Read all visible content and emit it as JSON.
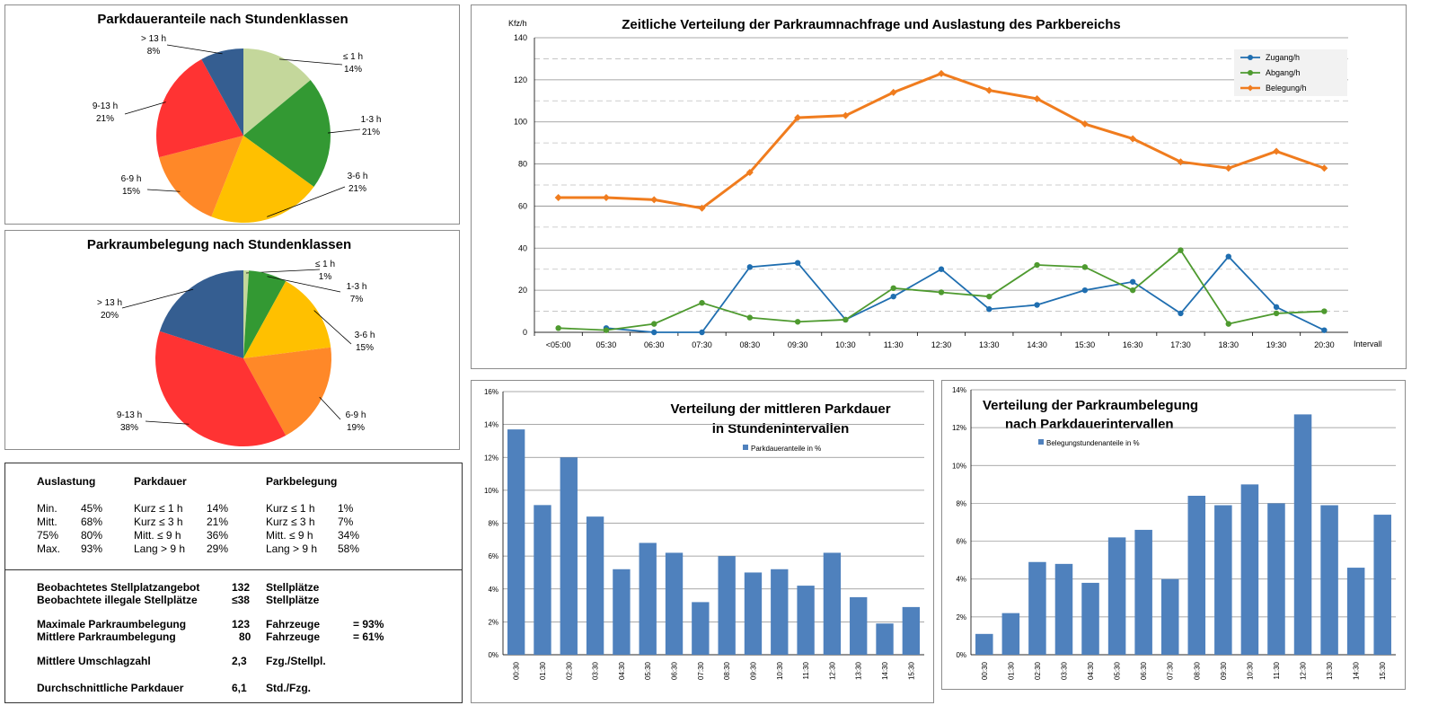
{
  "pie1": {
    "title": "Parkdaueranteile  nach Stundenklassen",
    "slices": [
      {
        "label": "≤ 1 h",
        "pct": "14%",
        "value": 14,
        "color": "#c4d79b"
      },
      {
        "label": "1-3 h",
        "pct": "21%",
        "value": 21,
        "color": "#339933"
      },
      {
        "label": "3-6 h",
        "pct": "21%",
        "value": 21,
        "color": "#ffc000"
      },
      {
        "label": "6-9 h",
        "pct": "15%",
        "value": 15,
        "color": "#ff8828"
      },
      {
        "label": "9-13 h",
        "pct": "21%",
        "value": 21,
        "color": "#ff3333"
      },
      {
        "label": "> 13 h",
        "pct": "8%",
        "value": 8,
        "color": "#355e91"
      }
    ]
  },
  "pie2": {
    "title": "Parkraumbelegung  nach Stundenklassen",
    "slices": [
      {
        "label": "≤ 1 h",
        "pct": "1%",
        "value": 1,
        "color": "#c4d79b"
      },
      {
        "label": "1-3 h",
        "pct": "7%",
        "value": 7,
        "color": "#339933"
      },
      {
        "label": "3-6 h",
        "pct": "15%",
        "value": 15,
        "color": "#ffc000"
      },
      {
        "label": "6-9 h",
        "pct": "19%",
        "value": 19,
        "color": "#ff8828"
      },
      {
        "label": "9-13 h",
        "pct": "38%",
        "value": 38,
        "color": "#ff3333"
      },
      {
        "label": "> 13 h",
        "pct": "20%",
        "value": 20,
        "color": "#355e91"
      }
    ]
  },
  "stats": {
    "headers": {
      "auslastung": "Auslastung",
      "parkdauer": "Parkdauer",
      "parkbelegung": "Parkbelegung"
    },
    "rows": [
      {
        "a_label": "Min.",
        "a_val": "45%",
        "d_label": "Kurz ≤ 1 h",
        "d_val": "14%",
        "b_label": "Kurz ≤ 1 h",
        "b_val": "1%"
      },
      {
        "a_label": "Mitt.",
        "a_val": "68%",
        "d_label": "Kurz ≤ 3 h",
        "d_val": "21%",
        "b_label": "Kurz ≤ 3 h",
        "b_val": "7%"
      },
      {
        "a_label": "75%",
        "a_val": "80%",
        "d_label": "Mitt. ≤ 9 h",
        "d_val": "36%",
        "b_label": "Mitt. ≤ 9 h",
        "b_val": "34%"
      },
      {
        "a_label": "Max.",
        "a_val": "93%",
        "d_label": "Lang > 9 h",
        "d_val": "29%",
        "b_label": "Lang > 9 h",
        "b_val": "58%"
      }
    ],
    "summary": [
      {
        "label": "Beobachtetes Stellplatzangebot",
        "value": "132",
        "unit": "Stellplätze",
        "extra": ""
      },
      {
        "label": "Beobachtete illegale Stellplätze",
        "value": "≤38",
        "unit": "Stellplätze",
        "extra": ""
      },
      {
        "label": "Maximale Parkraumbelegung",
        "value": "123",
        "unit": "Fahrzeuge",
        "extra": "=  93%"
      },
      {
        "label": "Mittlere Parkraumbelegung",
        "value": "80",
        "unit": "Fahrzeuge",
        "extra": "=  61%"
      },
      {
        "label": "Mittlere Umschlagzahl",
        "value": "2,3",
        "unit": "Fzg./Stellpl.",
        "extra": ""
      },
      {
        "label": "Durchschnittliche  Parkdauer",
        "value": "6,1",
        "unit": "Std./Fzg.",
        "extra": ""
      }
    ]
  },
  "line": {
    "title": "Zeitliche Verteilung der Parkraumnachfrage und Auslastung des Parkbereichs",
    "ylabel": "Kfz/h",
    "xlabel": "Intervall",
    "categories": [
      "<05:00",
      "05:30",
      "06:30",
      "07:30",
      "08:30",
      "09:30",
      "10:30",
      "11:30",
      "12:30",
      "13:30",
      "14:30",
      "15:30",
      "16:30",
      "17:30",
      "18:30",
      "19:30",
      "20:30"
    ],
    "yticks": [
      "0",
      "20",
      "40",
      "60",
      "80",
      "100",
      "120",
      "140"
    ],
    "series": [
      {
        "name": "Zugang/h",
        "color": "#1f6eb0",
        "values": [
          null,
          2,
          0,
          0,
          31,
          33,
          6,
          17,
          30,
          11,
          13,
          20,
          24,
          9,
          36,
          12,
          1
        ]
      },
      {
        "name": "Abgang/h",
        "color": "#4e9a2f",
        "values": [
          2,
          1,
          4,
          14,
          7,
          5,
          6,
          21,
          19,
          17,
          32,
          31,
          20,
          39,
          4,
          9,
          10
        ]
      },
      {
        "name": "Belegung/h",
        "color": "#f07c1e",
        "values": [
          64,
          64,
          63,
          59,
          76,
          102,
          103,
          114,
          123,
          115,
          111,
          99,
          92,
          81,
          78,
          86,
          78
        ]
      }
    ]
  },
  "bar1": {
    "title1": "Verteilung der mittleren Parkdauer",
    "title2": "in Stundenintervallen",
    "legend": "Parkdaueranteile in %",
    "color": "#4f81bd",
    "categories": [
      "00:30",
      "01:30",
      "02:30",
      "03:30",
      "04:30",
      "05:30",
      "06:30",
      "07:30",
      "08:30",
      "09:30",
      "10:30",
      "11:30",
      "12:30",
      "13:30",
      "14:30",
      "15:30"
    ],
    "values": [
      13.7,
      9.1,
      12.0,
      8.4,
      5.2,
      6.8,
      6.2,
      3.2,
      6.0,
      5.0,
      5.2,
      4.2,
      6.2,
      3.5,
      1.9,
      2.9
    ],
    "yticks": [
      "0%",
      "2%",
      "4%",
      "6%",
      "8%",
      "10%",
      "12%",
      "14%",
      "16%"
    ]
  },
  "bar2": {
    "title1": "Verteilung der Parkraumbelegung",
    "title2": "nach Parkdauerintervallen",
    "legend": "Belegungstundenanteile in %",
    "color": "#4f81bd",
    "categories": [
      "00:30",
      "01:30",
      "02:30",
      "03:30",
      "04:30",
      "05:30",
      "06:30",
      "07:30",
      "08:30",
      "09:30",
      "10:30",
      "11:30",
      "12:30",
      "13:30",
      "14:30",
      "15:30"
    ],
    "values": [
      1.1,
      2.2,
      4.9,
      4.8,
      3.8,
      6.2,
      6.6,
      4.0,
      8.4,
      7.9,
      9.0,
      8.0,
      12.7,
      7.9,
      4.6,
      7.4
    ],
    "yticks": [
      "0%",
      "2%",
      "4%",
      "6%",
      "8%",
      "10%",
      "12%",
      "14%"
    ]
  },
  "chart_data": [
    {
      "type": "pie",
      "title": "Parkdaueranteile  nach Stundenklassen",
      "categories": [
        "≤ 1 h",
        "1-3 h",
        "3-6 h",
        "6-9 h",
        "9-13 h",
        "> 13 h"
      ],
      "values": [
        14,
        21,
        21,
        15,
        21,
        8
      ]
    },
    {
      "type": "pie",
      "title": "Parkraumbelegung  nach Stundenklassen",
      "categories": [
        "≤ 1 h",
        "1-3 h",
        "3-6 h",
        "6-9 h",
        "9-13 h",
        "> 13 h"
      ],
      "values": [
        1,
        7,
        15,
        19,
        38,
        20
      ]
    },
    {
      "type": "line",
      "title": "Zeitliche Verteilung der Parkraumnachfrage und Auslastung des Parkbereichs",
      "xlabel": "Intervall",
      "ylabel": "Kfz/h",
      "ylim": [
        0,
        140
      ],
      "categories": [
        "<05:00",
        "05:30",
        "06:30",
        "07:30",
        "08:30",
        "09:30",
        "10:30",
        "11:30",
        "12:30",
        "13:30",
        "14:30",
        "15:30",
        "16:30",
        "17:30",
        "18:30",
        "19:30",
        "20:30"
      ],
      "series": [
        {
          "name": "Zugang/h",
          "values": [
            null,
            2,
            0,
            0,
            31,
            33,
            6,
            17,
            30,
            11,
            13,
            20,
            24,
            9,
            36,
            12,
            1
          ]
        },
        {
          "name": "Abgang/h",
          "values": [
            2,
            1,
            4,
            14,
            7,
            5,
            6,
            21,
            19,
            17,
            32,
            31,
            20,
            39,
            4,
            9,
            10
          ]
        },
        {
          "name": "Belegung/h",
          "values": [
            64,
            64,
            63,
            59,
            76,
            102,
            103,
            114,
            123,
            115,
            111,
            99,
            92,
            81,
            78,
            86,
            78
          ]
        }
      ],
      "legend": "top-right",
      "grid": true
    },
    {
      "type": "bar",
      "title": "Verteilung der mittleren Parkdauer in Stundenintervallen",
      "ylim": [
        0,
        16
      ],
      "categories": [
        "00:30",
        "01:30",
        "02:30",
        "03:30",
        "04:30",
        "05:30",
        "06:30",
        "07:30",
        "08:30",
        "09:30",
        "10:30",
        "11:30",
        "12:30",
        "13:30",
        "14:30",
        "15:30"
      ],
      "series": [
        {
          "name": "Parkdaueranteile in %",
          "values": [
            13.7,
            9.1,
            12.0,
            8.4,
            5.2,
            6.8,
            6.2,
            3.2,
            6.0,
            5.0,
            5.2,
            4.2,
            6.2,
            3.5,
            1.9,
            2.9
          ]
        }
      ]
    },
    {
      "type": "bar",
      "title": "Verteilung der Parkraumbelegung nach Parkdauerintervallen",
      "ylim": [
        0,
        14
      ],
      "categories": [
        "00:30",
        "01:30",
        "02:30",
        "03:30",
        "04:30",
        "05:30",
        "06:30",
        "07:30",
        "08:30",
        "09:30",
        "10:30",
        "11:30",
        "12:30",
        "13:30",
        "14:30",
        "15:30"
      ],
      "series": [
        {
          "name": "Belegungstundenanteile in %",
          "values": [
            1.1,
            2.2,
            4.9,
            4.8,
            3.8,
            6.2,
            6.6,
            4.0,
            8.4,
            7.9,
            9.0,
            8.0,
            12.7,
            7.9,
            4.6,
            7.4
          ]
        }
      ]
    }
  ]
}
